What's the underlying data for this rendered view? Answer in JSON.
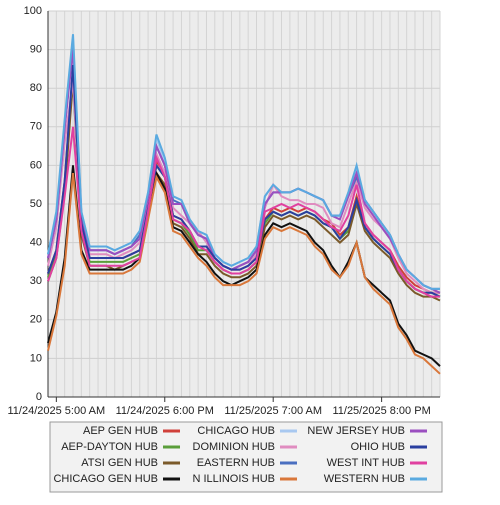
{
  "chart_data": {
    "type": "line",
    "categories": [
      null,
      "11/24/2025 5:00 AM",
      null,
      null,
      null,
      null,
      null,
      null,
      null,
      null,
      null,
      null,
      null,
      null,
      "11/24/2025 6:00 PM",
      null,
      null,
      null,
      null,
      null,
      null,
      null,
      null,
      null,
      null,
      null,
      null,
      "11/25/2025 7:00 AM",
      null,
      null,
      null,
      null,
      null,
      null,
      null,
      null,
      null,
      null,
      null,
      null,
      "11/25/2025 8:00 PM",
      null,
      null,
      null,
      null,
      null,
      null,
      null
    ],
    "ylim": [
      0,
      100
    ],
    "yticks": [
      0,
      10,
      20,
      30,
      40,
      50,
      60,
      70,
      80,
      90,
      100
    ],
    "grid": true,
    "series": [
      {
        "name": "AEP GEN HUB",
        "color": "#d0403a",
        "values": [
          32,
          38,
          56,
          85,
          45,
          36,
          36,
          36,
          36,
          36,
          37,
          38,
          49,
          61,
          58,
          47,
          46,
          43,
          39,
          39,
          36,
          34,
          33,
          33,
          34,
          36,
          46,
          49,
          48,
          49,
          48,
          49,
          48,
          46,
          45,
          42,
          44,
          52,
          45,
          42,
          40,
          38,
          34,
          31,
          29,
          28,
          27,
          27
        ]
      },
      {
        "name": "AEP-DAYTON HUB",
        "color": "#5a9e3a",
        "values": [
          31,
          37,
          55,
          84,
          44,
          35,
          35,
          35,
          35,
          35,
          36,
          37,
          48,
          60,
          57,
          46,
          45,
          42,
          38,
          38,
          35,
          33,
          32,
          32,
          33,
          35,
          45,
          48,
          47,
          48,
          47,
          48,
          47,
          45,
          44,
          41,
          43,
          51,
          44,
          41,
          39,
          37,
          33,
          30,
          28,
          27,
          27,
          26
        ]
      },
      {
        "name": "ATSI GEN HUB",
        "color": "#7b5a2a",
        "values": [
          30,
          36,
          53,
          82,
          42,
          34,
          34,
          34,
          33,
          34,
          35,
          36,
          47,
          58,
          55,
          45,
          44,
          41,
          37,
          37,
          34,
          32,
          31,
          31,
          32,
          34,
          44,
          47,
          46,
          47,
          46,
          47,
          46,
          44,
          42,
          40,
          42,
          50,
          43,
          40,
          38,
          36,
          32,
          29,
          27,
          26,
          26,
          25
        ]
      },
      {
        "name": "CHICAGO GEN HUB",
        "color": "#111111",
        "values": [
          14,
          22,
          36,
          60,
          38,
          33,
          33,
          33,
          33,
          33,
          34,
          36,
          47,
          58,
          54,
          44,
          43,
          40,
          37,
          35,
          32,
          30,
          29,
          30,
          31,
          33,
          42,
          45,
          44,
          45,
          44,
          43,
          40,
          38,
          34,
          31,
          35,
          40,
          31,
          29,
          27,
          25,
          19,
          16,
          12,
          11,
          10,
          8
        ]
      },
      {
        "name": "CHICAGO HUB",
        "color": "#a8c8f0",
        "values": [
          37,
          47,
          71,
          93,
          48,
          39,
          39,
          39,
          38,
          39,
          40,
          43,
          53,
          67,
          61,
          52,
          51,
          46,
          43,
          42,
          37,
          35,
          34,
          35,
          36,
          39,
          52,
          55,
          53,
          53,
          54,
          53,
          52,
          51,
          47,
          47,
          52,
          59,
          51,
          48,
          45,
          42,
          37,
          33,
          31,
          29,
          28,
          28
        ]
      },
      {
        "name": "DOMINION HUB",
        "color": "#e08cc0",
        "values": [
          34,
          44,
          66,
          82,
          45,
          37,
          37,
          37,
          36,
          37,
          38,
          40,
          50,
          63,
          58,
          49,
          47,
          45,
          43,
          40,
          36,
          34,
          33,
          33,
          34,
          37,
          49,
          55,
          52,
          51,
          51,
          50,
          50,
          49,
          45,
          44,
          50,
          56,
          49,
          46,
          44,
          41,
          36,
          32,
          30,
          28,
          27,
          27
        ]
      },
      {
        "name": "EASTERN HUB",
        "color": "#4a6fc0",
        "values": [
          36,
          46,
          70,
          91,
          47,
          38,
          38,
          38,
          37,
          38,
          39,
          42,
          52,
          65,
          60,
          51,
          50,
          45,
          42,
          41,
          36,
          34,
          33,
          34,
          35,
          38,
          50,
          53,
          53,
          53,
          54,
          53,
          52,
          51,
          47,
          47,
          52,
          57,
          51,
          48,
          45,
          42,
          37,
          33,
          31,
          29,
          28,
          28
        ]
      },
      {
        "name": "N ILLINOIS HUB",
        "color": "#d9773a",
        "values": [
          12,
          21,
          34,
          58,
          37,
          32,
          32,
          32,
          32,
          32,
          33,
          35,
          46,
          57,
          53,
          43,
          42,
          39,
          36,
          34,
          31,
          29,
          29,
          29,
          30,
          32,
          41,
          44,
          43,
          44,
          43,
          42,
          39,
          37,
          33,
          31,
          34,
          40,
          31,
          28,
          26,
          24,
          18,
          15,
          11,
          10,
          8,
          6
        ]
      },
      {
        "name": "NEW JERSEY HUB",
        "color": "#9b4fc0",
        "values": [
          36,
          46,
          70,
          90,
          47,
          38,
          38,
          38,
          37,
          38,
          39,
          41,
          52,
          65,
          60,
          50,
          50,
          45,
          42,
          41,
          36,
          34,
          33,
          34,
          35,
          38,
          50,
          53,
          53,
          53,
          54,
          53,
          52,
          51,
          47,
          46,
          52,
          58,
          50,
          47,
          44,
          41,
          37,
          33,
          31,
          29,
          28,
          27
        ]
      },
      {
        "name": "OHIO HUB",
        "color": "#2a3fa0",
        "values": [
          32,
          38,
          56,
          86,
          45,
          36,
          36,
          36,
          36,
          36,
          37,
          38,
          49,
          60,
          57,
          47,
          46,
          43,
          39,
          39,
          36,
          34,
          33,
          33,
          34,
          36,
          46,
          48,
          47,
          48,
          47,
          48,
          47,
          45,
          44,
          41,
          44,
          51,
          44,
          41,
          39,
          37,
          33,
          30,
          28,
          27,
          27,
          26
        ]
      },
      {
        "name": "WEST INT HUB",
        "color": "#e040a0",
        "values": [
          30,
          36,
          52,
          70,
          43,
          34,
          34,
          34,
          34,
          34,
          35,
          36,
          48,
          62,
          57,
          46,
          45,
          43,
          39,
          38,
          35,
          33,
          32,
          32,
          33,
          35,
          48,
          49,
          50,
          49,
          50,
          49,
          48,
          46,
          44,
          43,
          47,
          55,
          45,
          42,
          40,
          38,
          33,
          30,
          28,
          27,
          26,
          26
        ]
      },
      {
        "name": "WESTERN HUB",
        "color": "#5aaae0",
        "values": [
          37,
          48,
          72,
          94,
          48,
          39,
          39,
          39,
          38,
          39,
          40,
          43,
          53,
          68,
          62,
          52,
          51,
          46,
          43,
          42,
          37,
          35,
          34,
          35,
          36,
          39,
          52,
          55,
          53,
          53,
          54,
          53,
          52,
          51,
          47,
          47,
          53,
          60,
          51,
          48,
          45,
          42,
          37,
          33,
          31,
          29,
          28,
          28
        ]
      }
    ]
  }
}
